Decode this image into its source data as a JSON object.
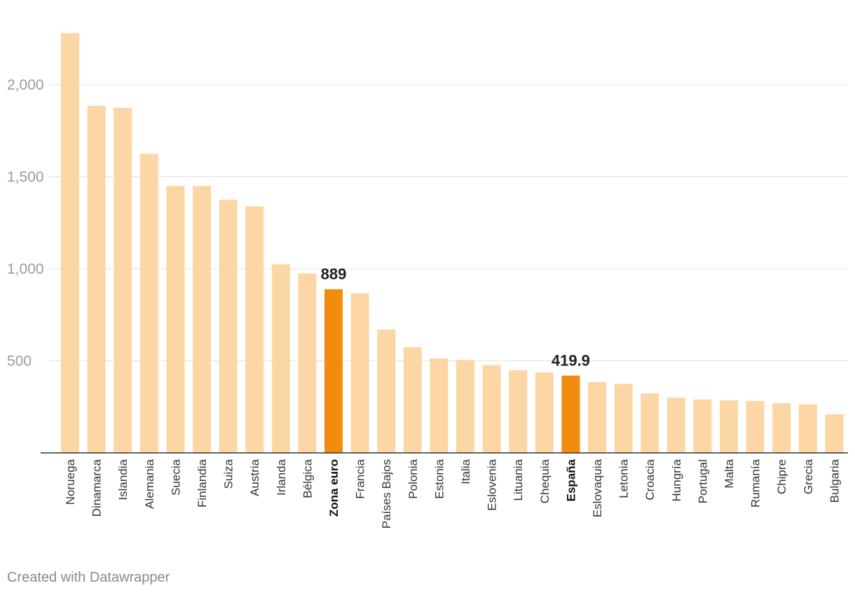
{
  "chart_data": {
    "type": "bar",
    "title": "",
    "xlabel": "",
    "ylabel": "",
    "ylim": [
      0,
      2300
    ],
    "yticks": [
      500,
      1000,
      1500,
      2000
    ],
    "ytick_labels": [
      "500",
      "1,000",
      "1,500",
      "2,000"
    ],
    "categories": [
      "Noruega",
      "Dinamarca",
      "Islandia",
      "Alemania",
      "Suecia",
      "Finlandia",
      "Suiza",
      "Austria",
      "Irlanda",
      "Bélgica",
      "Zona euro",
      "Francia",
      "Países Bajos",
      "Polonia",
      "Estonia",
      "Italia",
      "Eslovenia",
      "Lituania",
      "Chequia",
      "España",
      "Eslovaquia",
      "Letonia",
      "Croacia",
      "Hungría",
      "Portugal",
      "Malta",
      "Rumanía",
      "Chipre",
      "Grecia",
      "Bulgaria"
    ],
    "values": [
      2280,
      1885,
      1875,
      1625,
      1450,
      1450,
      1375,
      1340,
      1025,
      975,
      889,
      868,
      670,
      575,
      513,
      505,
      477,
      449,
      437,
      419.9,
      385,
      375,
      323,
      300,
      290,
      285,
      282,
      270,
      263,
      210
    ],
    "highlighted": [
      "Zona euro",
      "España"
    ],
    "data_labels": [
      {
        "category": "Zona euro",
        "text": "889"
      },
      {
        "category": "España",
        "text": "419.9"
      }
    ],
    "colors": {
      "bar": "#fcd7a5",
      "highlight": "#f28c0f",
      "grid": "#e3e3e3",
      "axis": "#333333"
    },
    "grid": true
  },
  "footer": {
    "credit": "Created with Datawrapper"
  }
}
